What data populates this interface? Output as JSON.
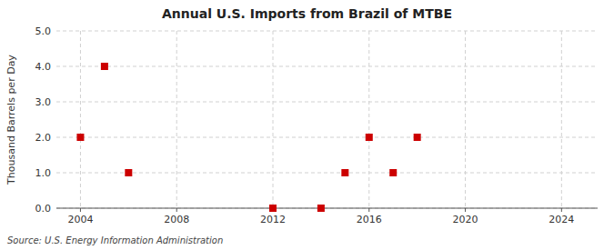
{
  "chart_data": {
    "type": "scatter",
    "title": "Annual U.S. Imports from Brazil of MTBE",
    "y_label": "Thousand Barrels per Day",
    "annotation": "Source: U.S. Energy Information Administration",
    "x": [
      2004,
      2005,
      2006,
      2012,
      2014,
      2015,
      2016,
      2017,
      2018
    ],
    "values": [
      2.0,
      4.0,
      1.0,
      0.0,
      0.0,
      1.0,
      2.0,
      1.0,
      2.0
    ],
    "xlim": [
      2003,
      2025.5
    ],
    "ylim": [
      0.0,
      5.0
    ],
    "xticks": [
      2004,
      2008,
      2012,
      2016,
      2020,
      2024
    ],
    "yticks": [
      {
        "value": 0.0,
        "label": "0.0"
      },
      {
        "value": 1.0,
        "label": "1.0"
      },
      {
        "value": 2.0,
        "label": "2.0"
      },
      {
        "value": 3.0,
        "label": "3.0"
      },
      {
        "value": 4.0,
        "label": "4.0"
      },
      {
        "value": 5.0,
        "label": "5.0"
      }
    ],
    "color": "#cc0000",
    "marker": "square",
    "grid": true
  }
}
